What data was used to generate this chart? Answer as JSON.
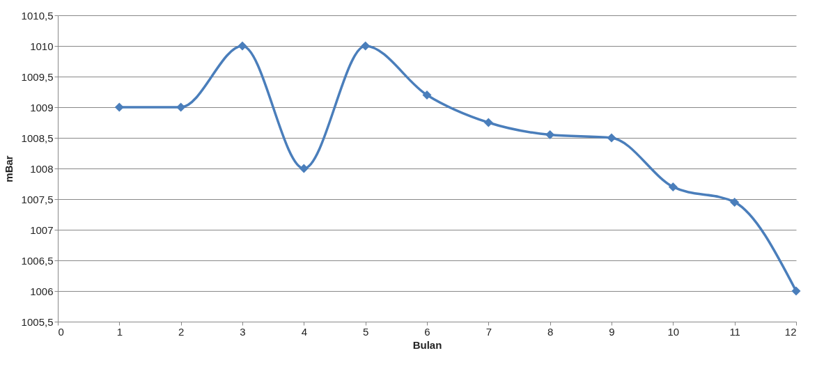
{
  "chart_data": {
    "type": "line",
    "xlabel": "Bulan",
    "ylabel": "mBar",
    "x": [
      1,
      2,
      3,
      4,
      5,
      6,
      7,
      8,
      9,
      10,
      11,
      12
    ],
    "series": [
      {
        "color": "#4a7ebb",
        "values": [
          1009,
          1009,
          1010,
          1008,
          1010,
          1009.2,
          1008.75,
          1008.55,
          1008.5,
          1007.7,
          1007.45,
          1006
        ]
      }
    ],
    "xlim": [
      0,
      12
    ],
    "xticks": [
      0,
      1,
      2,
      3,
      4,
      5,
      6,
      7,
      8,
      9,
      10,
      11,
      12
    ],
    "ylim": [
      1005.5,
      1010.5
    ],
    "yticks": [
      {
        "value": 1005.5,
        "label": "1005,5"
      },
      1006,
      {
        "value": 1006.5,
        "label": "1006,5"
      },
      1007,
      {
        "value": 1007.5,
        "label": "1007,5"
      },
      1008,
      {
        "value": 1008.5,
        "label": "1008,5"
      },
      1009,
      {
        "value": 1009.5,
        "label": "1009,5"
      },
      1010,
      {
        "value": 1010.5,
        "label": "1010,5"
      }
    ],
    "grid": "y",
    "marker": "diamond",
    "line_style": "solid"
  }
}
